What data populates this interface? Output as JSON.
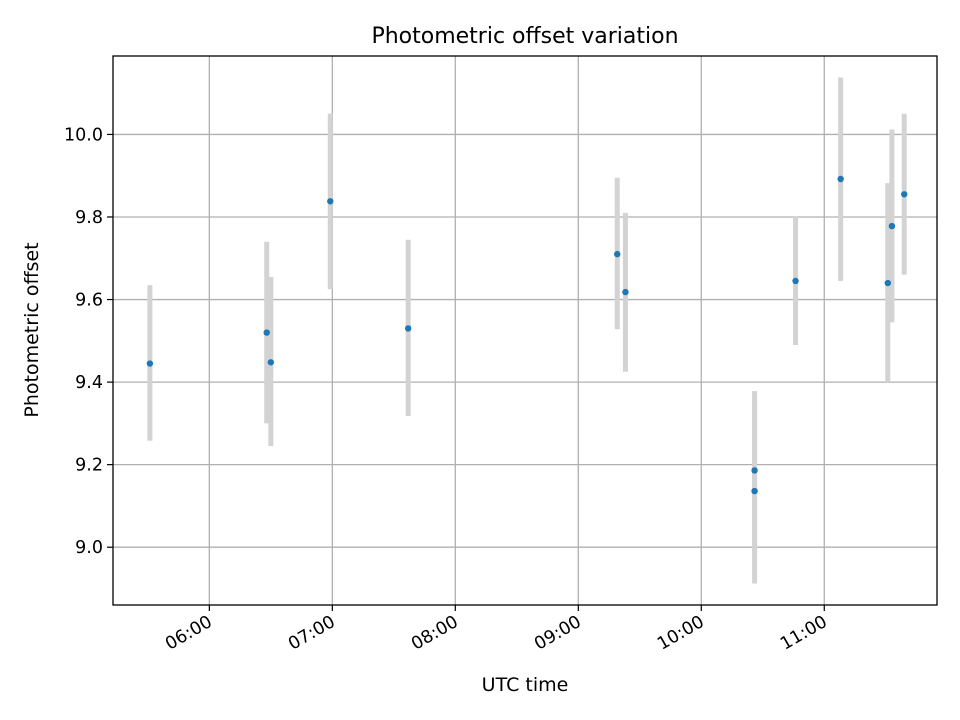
{
  "chart_data": {
    "type": "scatter",
    "title": "Photometric offset variation",
    "xlabel": "UTC time",
    "ylabel": "Photometric offset",
    "x_axis_type": "time",
    "xlim": [
      "05:13",
      "11:55"
    ],
    "ylim": [
      8.86,
      10.19
    ],
    "grid": true,
    "error_bars": true,
    "x_ticks": [
      "06:00",
      "07:00",
      "08:00",
      "09:00",
      "10:00",
      "11:00"
    ],
    "y_ticks": [
      9.0,
      9.2,
      9.4,
      9.6,
      9.8,
      10.0
    ],
    "y_tick_labels": [
      "9.0",
      "9.2",
      "9.4",
      "9.6",
      "9.8",
      "10.0"
    ],
    "point_color": "#1f77b4",
    "error_color": "#d3d3d3",
    "series": [
      {
        "x": [
          "05:31",
          "06:28",
          "06:30",
          "06:59",
          "07:37",
          "09:19",
          "09:23",
          "10:26",
          "10:26",
          "10:46",
          "11:08",
          "11:31",
          "11:33",
          "11:39"
        ],
        "y": [
          9.445,
          9.52,
          9.448,
          9.838,
          9.53,
          9.71,
          9.618,
          9.186,
          9.136,
          9.645,
          9.892,
          9.64,
          9.778,
          9.855
        ],
        "yerr_low": [
          9.258,
          9.3,
          9.245,
          9.625,
          9.318,
          9.528,
          9.425,
          8.986,
          8.912,
          9.49,
          9.645,
          9.4,
          9.545,
          9.66
        ],
        "yerr_high": [
          9.635,
          9.74,
          9.655,
          10.05,
          9.745,
          9.895,
          9.81,
          9.378,
          9.36,
          9.802,
          10.138,
          9.882,
          10.012,
          10.05
        ]
      }
    ]
  }
}
